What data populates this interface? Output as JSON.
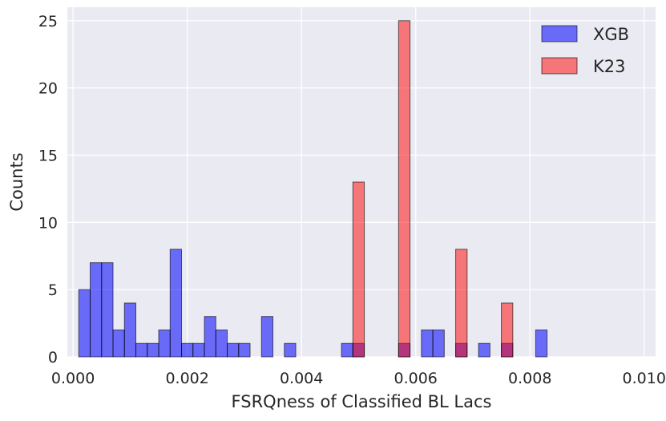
{
  "chart_data": {
    "type": "bar",
    "title": "",
    "xlabel": "FSRQness of Classified BL Lacs",
    "ylabel": "Counts",
    "xlim": [
      -0.0001,
      0.0102
    ],
    "ylim": [
      0,
      26
    ],
    "x_ticks": [
      0.0,
      0.002,
      0.004,
      0.006,
      0.008,
      0.01
    ],
    "x_tick_labels": [
      "0.000",
      "0.002",
      "0.004",
      "0.006",
      "0.008",
      "0.010"
    ],
    "y_ticks": [
      0,
      5,
      10,
      15,
      20,
      25
    ],
    "y_tick_labels": [
      "0",
      "5",
      "10",
      "15",
      "20",
      "25"
    ],
    "grid": true,
    "legend_position": "top-right",
    "bin_width": 0.0002,
    "series": [
      {
        "name": "XGB",
        "color": "#0000ff",
        "opacity": 0.55,
        "bins": [
          {
            "x": 0.0001,
            "count": 5
          },
          {
            "x": 0.0003,
            "count": 7
          },
          {
            "x": 0.0005,
            "count": 7
          },
          {
            "x": 0.0007,
            "count": 2
          },
          {
            "x": 0.0009,
            "count": 4
          },
          {
            "x": 0.0011,
            "count": 1
          },
          {
            "x": 0.0013,
            "count": 1
          },
          {
            "x": 0.0015,
            "count": 2
          },
          {
            "x": 0.0017,
            "count": 8
          },
          {
            "x": 0.0019,
            "count": 1
          },
          {
            "x": 0.0021,
            "count": 1
          },
          {
            "x": 0.0023,
            "count": 3
          },
          {
            "x": 0.0025,
            "count": 2
          },
          {
            "x": 0.0027,
            "count": 1
          },
          {
            "x": 0.0029,
            "count": 1
          },
          {
            "x": 0.0033,
            "count": 3
          },
          {
            "x": 0.0037,
            "count": 1
          },
          {
            "x": 0.0047,
            "count": 1
          },
          {
            "x": 0.0049,
            "count": 1
          },
          {
            "x": 0.0057,
            "count": 1
          },
          {
            "x": 0.0061,
            "count": 2
          },
          {
            "x": 0.0063,
            "count": 2
          },
          {
            "x": 0.0067,
            "count": 1
          },
          {
            "x": 0.0071,
            "count": 1
          },
          {
            "x": 0.0075,
            "count": 1
          },
          {
            "x": 0.0081,
            "count": 2
          }
        ]
      },
      {
        "name": "K23",
        "color": "#ff0000",
        "opacity": 0.5,
        "bins": [
          {
            "x": 0.0049,
            "count": 13
          },
          {
            "x": 0.0057,
            "count": 25
          },
          {
            "x": 0.0067,
            "count": 8
          },
          {
            "x": 0.0075,
            "count": 4
          }
        ]
      }
    ]
  }
}
